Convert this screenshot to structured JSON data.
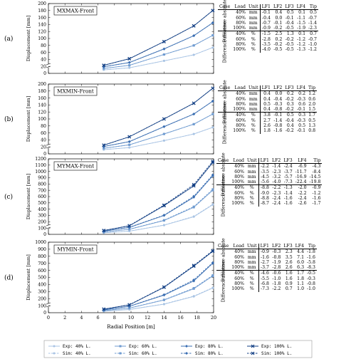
{
  "figure": {
    "shared_xlabel": "Radial Position [m]",
    "ylabel": "Displacement [mm]",
    "x_ticks": [
      "0",
      "2",
      "4",
      "6",
      "8",
      "10",
      "12",
      "14",
      "16",
      "18",
      "20"
    ]
  },
  "chart_data": [
    {
      "id": "a",
      "panel_label": "(a)",
      "type": "line",
      "title": "MXMAX-Front",
      "xlabel": "Radial Position [m]",
      "ylabel": "Displacement [mm]",
      "x": [
        6.7,
        9.8,
        14.0,
        17.6,
        19.9
      ],
      "ylim": [
        0,
        200
      ],
      "yticks": [
        0,
        20,
        40,
        60,
        80,
        100,
        120,
        140,
        160,
        180,
        200
      ],
      "y_break": true,
      "series": [
        {
          "name": "Exp: 40% L.",
          "color": "#a9c4e4",
          "dashed": false,
          "values": [
            10,
            16,
            36,
            53,
            74
          ]
        },
        {
          "name": "Sim: 40% L.",
          "color": "#a9c4e4",
          "dashed": true,
          "values": [
            10,
            16,
            36,
            53,
            74
          ]
        },
        {
          "name": "Exp: 60% L.",
          "color": "#6f9bd0",
          "dashed": false,
          "values": [
            14,
            23,
            54,
            80,
            109
          ]
        },
        {
          "name": "Sim: 60% L.",
          "color": "#6f9bd0",
          "dashed": true,
          "values": [
            14,
            23,
            54,
            80,
            109
          ]
        },
        {
          "name": "Exp: 80% L.",
          "color": "#3a6eb2",
          "dashed": false,
          "values": [
            19,
            31,
            70,
            108,
            145
          ]
        },
        {
          "name": "Sim: 80% L.",
          "color": "#3a6eb2",
          "dashed": true,
          "values": [
            19,
            31,
            70,
            108,
            145
          ]
        },
        {
          "name": "Exp: 100% L.",
          "color": "#123f84",
          "dashed": false,
          "values": [
            23,
            42,
            91,
            136,
            180
          ]
        },
        {
          "name": "Sim: 100% L.",
          "color": "#123f84",
          "dashed": true,
          "values": [
            23,
            42,
            91,
            136,
            180
          ]
        }
      ]
    },
    {
      "id": "b",
      "panel_label": "(b)",
      "type": "line",
      "title": "MXMIN-Front",
      "xlabel": "Radial Position [m]",
      "ylabel": "Displacement [mm]",
      "x": [
        6.7,
        9.8,
        14.0,
        17.6,
        19.9
      ],
      "ylim": [
        0,
        200
      ],
      "yticks": [
        0,
        20,
        40,
        60,
        80,
        100,
        120,
        140,
        160,
        180,
        200
      ],
      "y_break": true,
      "series": [
        {
          "name": "Exp: 40% L.",
          "color": "#a9c4e4",
          "dashed": false,
          "values": [
            12,
            18,
            38,
            57,
            76
          ]
        },
        {
          "name": "Sim: 40% L.",
          "color": "#a9c4e4",
          "dashed": true,
          "values": [
            12,
            18,
            38,
            57,
            76
          ]
        },
        {
          "name": "Exp: 60% L.",
          "color": "#6f9bd0",
          "dashed": false,
          "values": [
            16,
            26,
            57,
            85,
            114
          ]
        },
        {
          "name": "Sim: 60% L.",
          "color": "#6f9bd0",
          "dashed": true,
          "values": [
            16,
            26,
            57,
            85,
            114
          ]
        },
        {
          "name": "Exp: 80% L.",
          "color": "#3a6eb2",
          "dashed": false,
          "values": [
            21,
            35,
            78,
            114,
            151
          ]
        },
        {
          "name": "Sim: 80% L.",
          "color": "#3a6eb2",
          "dashed": true,
          "values": [
            21,
            35,
            78,
            114,
            151
          ]
        },
        {
          "name": "Exp: 100% L.",
          "color": "#123f84",
          "dashed": false,
          "values": [
            25,
            49,
            100,
            145,
            188
          ]
        },
        {
          "name": "Sim: 100% L.",
          "color": "#123f84",
          "dashed": true,
          "values": [
            25,
            49,
            100,
            145,
            188
          ]
        }
      ]
    },
    {
      "id": "c",
      "panel_label": "(c)",
      "type": "line",
      "title": "MYMAX-Front",
      "xlabel": "Radial Position [m]",
      "ylabel": "Displacement [mm]",
      "x": [
        6.7,
        9.8,
        14.0,
        17.6,
        19.9
      ],
      "ylim": [
        0,
        1200
      ],
      "yticks": [
        0,
        100,
        200,
        300,
        400,
        500,
        600,
        700,
        800,
        900,
        1000,
        1100,
        1200
      ],
      "y_break": true,
      "series": [
        {
          "name": "Exp: 40% L.",
          "color": "#a9c4e4",
          "dashed": false,
          "values": [
            24,
            50,
            145,
            280,
            470
          ]
        },
        {
          "name": "Sim: 40% L.",
          "color": "#a9c4e4",
          "dashed": true,
          "values": [
            25,
            52,
            148,
            285,
            478
          ]
        },
        {
          "name": "Exp: 60% L.",
          "color": "#6f9bd0",
          "dashed": false,
          "values": [
            36,
            80,
            220,
            430,
            700
          ]
        },
        {
          "name": "Sim: 60% L.",
          "color": "#6f9bd0",
          "dashed": true,
          "values": [
            37,
            82,
            225,
            440,
            715
          ]
        },
        {
          "name": "Exp: 80% L.",
          "color": "#3a6eb2",
          "dashed": false,
          "values": [
            50,
            110,
            300,
            590,
            930
          ]
        },
        {
          "name": "Sim: 80% L.",
          "color": "#3a6eb2",
          "dashed": true,
          "values": [
            51,
            113,
            305,
            605,
            945
          ]
        },
        {
          "name": "Exp: 100% L.",
          "color": "#123f84",
          "dashed": false,
          "values": [
            60,
            135,
            455,
            770,
            1140
          ]
        },
        {
          "name": "Sim: 100% L.",
          "color": "#123f84",
          "dashed": true,
          "values": [
            61,
            138,
            465,
            790,
            1160
          ]
        }
      ]
    },
    {
      "id": "d",
      "panel_label": "(d)",
      "type": "line",
      "title": "MYMIN-Front",
      "xlabel": "Radial Position [m]",
      "ylabel": "Displacement [mm]",
      "x": [
        6.7,
        9.8,
        14.0,
        17.6,
        19.9
      ],
      "ylim": [
        0,
        1000
      ],
      "yticks": [
        0,
        100,
        200,
        300,
        400,
        500,
        600,
        700,
        800,
        900,
        1000
      ],
      "y_break": true,
      "series": [
        {
          "name": "Exp: 40% L.",
          "color": "#a9c4e4",
          "dashed": false,
          "values": [
            20,
            45,
            120,
            230,
            350
          ]
        },
        {
          "name": "Sim: 40% L.",
          "color": "#a9c4e4",
          "dashed": true,
          "values": [
            20,
            46,
            124,
            235,
            355
          ]
        },
        {
          "name": "Exp: 60% L.",
          "color": "#6f9bd0",
          "dashed": false,
          "values": [
            30,
            65,
            180,
            340,
            520
          ]
        },
        {
          "name": "Sim: 60% L.",
          "color": "#6f9bd0",
          "dashed": true,
          "values": [
            31,
            67,
            183,
            348,
            530
          ]
        },
        {
          "name": "Exp: 80% L.",
          "color": "#3a6eb2",
          "dashed": false,
          "values": [
            40,
            90,
            250,
            450,
            700
          ]
        },
        {
          "name": "Sim: 80% L.",
          "color": "#3a6eb2",
          "dashed": true,
          "values": [
            41,
            92,
            255,
            465,
            710
          ]
        },
        {
          "name": "Exp: 100% L.",
          "color": "#123f84",
          "dashed": false,
          "values": [
            50,
            110,
            360,
            660,
            870
          ]
        },
        {
          "name": "Sim: 100% L.",
          "color": "#123f84",
          "dashed": true,
          "values": [
            51,
            113,
            365,
            670,
            880
          ]
        }
      ]
    }
  ],
  "legend": [
    {
      "label": "Exp: 40% L.",
      "color": "#a9c4e4",
      "dashed": false
    },
    {
      "label": "Exp: 60% L.",
      "color": "#6f9bd0",
      "dashed": false
    },
    {
      "label": "Exp: 80% L.",
      "color": "#3a6eb2",
      "dashed": false
    },
    {
      "label": "Exp: 100% L.",
      "color": "#123f84",
      "dashed": false
    },
    {
      "label": "Sim: 40% L.",
      "color": "#a9c4e4",
      "dashed": true
    },
    {
      "label": "Sim: 60% L.",
      "color": "#6f9bd0",
      "dashed": true
    },
    {
      "label": "Sim: 80% L.",
      "color": "#3a6eb2",
      "dashed": true
    },
    {
      "label": "Sim: 100% L.",
      "color": "#123f84",
      "dashed": true
    }
  ],
  "tables": [
    {
      "id": "a",
      "header": [
        "Case",
        "Load",
        "Unit",
        "LF1",
        "LF2",
        "LF3",
        "LF4",
        "Tip"
      ],
      "groups": [
        "Difference absolute",
        "Difference relative"
      ],
      "rows": [
        [
          "40%",
          "mm",
          "-0.1",
          "0.4",
          "0.5",
          "0.1",
          "0.5"
        ],
        [
          "60%",
          "mm",
          "-0.4",
          "0.0",
          "-0.1",
          "-1.1",
          "-0.7"
        ],
        [
          "80%",
          "mm",
          "-0.7",
          "-0.1",
          "-0.4",
          "-1.5",
          "-1.4"
        ],
        [
          "100%",
          "mm",
          "-0.9",
          "-0.2",
          "-0.5",
          "-1.9",
          "-2.3"
        ],
        [
          "40%",
          "%",
          "-1.5",
          "2.5",
          "1.3",
          "0.1",
          "0.7"
        ],
        [
          "60%",
          "%",
          "-2.8",
          "0.2",
          "-0.2",
          "-1.2",
          "-0.7"
        ],
        [
          "80%",
          "%",
          "-3.5",
          "-0.2",
          "-0.5",
          "-1.2",
          "-1.0"
        ],
        [
          "100%",
          "%",
          "-4.0",
          "-0.5",
          "-0.5",
          "-1.3",
          "-1.2"
        ]
      ]
    },
    {
      "id": "b",
      "header": [
        "Case",
        "Load",
        "Unit",
        "LF1",
        "LF2",
        "LF3",
        "LF4",
        "Tip"
      ],
      "groups": [
        "Difference absolute",
        "Difference relative"
      ],
      "rows": [
        [
          "40%",
          "mm",
          "0.4",
          "0.0",
          "0.2",
          "0.2",
          "1.2"
        ],
        [
          "60%",
          "mm",
          "0.4",
          "-0.4",
          "-0.2",
          "-0.3",
          "0.6"
        ],
        [
          "80%",
          "mm",
          "0.5",
          "-0.3",
          "0.3",
          "0.6",
          "2.0"
        ],
        [
          "100%",
          "mm",
          "0.4",
          "-0.8",
          "-0.2",
          "-0.1",
          "1.5"
        ],
        [
          "40%",
          "%",
          "3.8",
          "-0.1",
          "0.5",
          "0.3",
          "1.7"
        ],
        [
          "60%",
          "%",
          "2.7",
          "-1.4",
          "-0.4",
          "-0.3",
          "0.5"
        ],
        [
          "80%",
          "%",
          "2.6",
          "-0.8",
          "0.4",
          "0.5",
          "1.3"
        ],
        [
          "100%",
          "%",
          "1.8",
          "-1.6",
          "-0.2",
          "-0.1",
          "0.8"
        ]
      ]
    },
    {
      "id": "c",
      "header": [
        "Case",
        "Load",
        "Unit",
        "LF1",
        "LF2",
        "LF3",
        "LF4",
        "Tip"
      ],
      "groups": [
        "Difference absolute",
        "Difference relative"
      ],
      "rows": [
        [
          "40%",
          "mm",
          "-2.2",
          "-1.4",
          "-2.4",
          "-6.9",
          "-4.3"
        ],
        [
          "60%",
          "mm",
          "-3.5",
          "-2.3",
          "-3.7",
          "-11.7",
          "-8.4"
        ],
        [
          "80%",
          "mm",
          "-4.5",
          "-3.2",
          "-5.7",
          "-16.9",
          "-14.5"
        ],
        [
          "100%",
          "mm",
          "-5.6",
          "-4.0",
          "-7.3",
          "-22.4",
          "-19.8"
        ],
        [
          "40%",
          "%",
          "-8.8",
          "-2.2",
          "-1.3",
          "-2.0",
          "-0.9"
        ],
        [
          "60%",
          "%",
          "-9.0",
          "-2.3",
          "-1.4",
          "-2.2",
          "-1.2"
        ],
        [
          "80%",
          "%",
          "-8.8",
          "-2.4",
          "-1.6",
          "-2.4",
          "-1.6"
        ],
        [
          "100%",
          "%",
          "-8.7",
          "-2.4",
          "-1.6",
          "-2.6",
          "-1.7"
        ]
      ]
    },
    {
      "id": "d",
      "header": [
        "Case",
        "Load",
        "Unit",
        "LF1",
        "LF2",
        "LF3",
        "LF4",
        "Tip"
      ],
      "groups": [
        "Difference absolute",
        "Difference relative"
      ],
      "rows": [
        [
          "40%",
          "mm",
          "-0.9",
          "-0.3",
          "2.3",
          "4.4",
          "-1.8"
        ],
        [
          "60%",
          "mm",
          "-1.6",
          "-0.8",
          "3.5",
          "7.1",
          "-1.6"
        ],
        [
          "80%",
          "mm",
          "-2.7",
          "-1.9",
          "2.6",
          "6.0",
          "-5.8"
        ],
        [
          "100%",
          "mm",
          "-3.7",
          "-2.8",
          "2.6",
          "6.3",
          "-8.3"
        ],
        [
          "40%",
          "%",
          "-4.6",
          "-0.6",
          "1.6",
          "1.7",
          "-0.5"
        ],
        [
          "60%",
          "%",
          "-5.5",
          "-1.0",
          "1.6",
          "1.8",
          "-0.3"
        ],
        [
          "80%",
          "%",
          "-6.8",
          "-1.8",
          "0.9",
          "1.1",
          "-0.8"
        ],
        [
          "100%",
          "%",
          "-7.3",
          "-2.2",
          "0.7",
          "1.0",
          "-1.0"
        ]
      ]
    }
  ]
}
